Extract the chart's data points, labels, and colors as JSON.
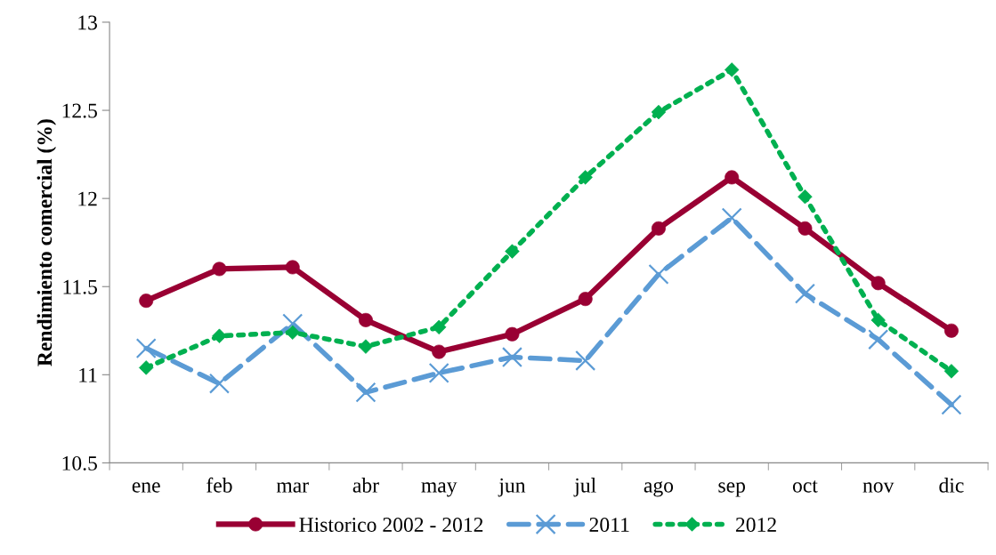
{
  "chart_data": {
    "type": "line",
    "ylabel": "Rendimiento comercial (%)",
    "categories": [
      "ene",
      "feb",
      "mar",
      "abr",
      "may",
      "jun",
      "jul",
      "ago",
      "sep",
      "oct",
      "nov",
      "dic"
    ],
    "series": [
      {
        "name": "Historico 2002 - 2012",
        "color": "#990033",
        "marker": "circle",
        "line_style": "solid",
        "values": [
          11.42,
          11.6,
          11.61,
          11.31,
          11.13,
          11.23,
          11.43,
          11.83,
          12.12,
          11.83,
          11.52,
          11.25
        ]
      },
      {
        "name": "2011",
        "color": "#5b9bd5",
        "marker": "cross",
        "line_style": "dashed",
        "values": [
          11.15,
          10.95,
          11.29,
          10.9,
          11.01,
          11.1,
          11.08,
          11.57,
          11.89,
          11.46,
          11.2,
          10.83
        ]
      },
      {
        "name": "2012",
        "color": "#00b050",
        "marker": "diamond",
        "line_style": "dotted",
        "values": [
          11.04,
          11.22,
          11.24,
          11.16,
          11.27,
          11.7,
          12.12,
          12.49,
          12.73,
          12.01,
          11.31,
          11.02
        ]
      }
    ],
    "ylim": [
      10.5,
      13
    ],
    "yticks": [
      10.5,
      11,
      11.5,
      12,
      12.5,
      13
    ],
    "grid": false,
    "legend": "bottom"
  }
}
